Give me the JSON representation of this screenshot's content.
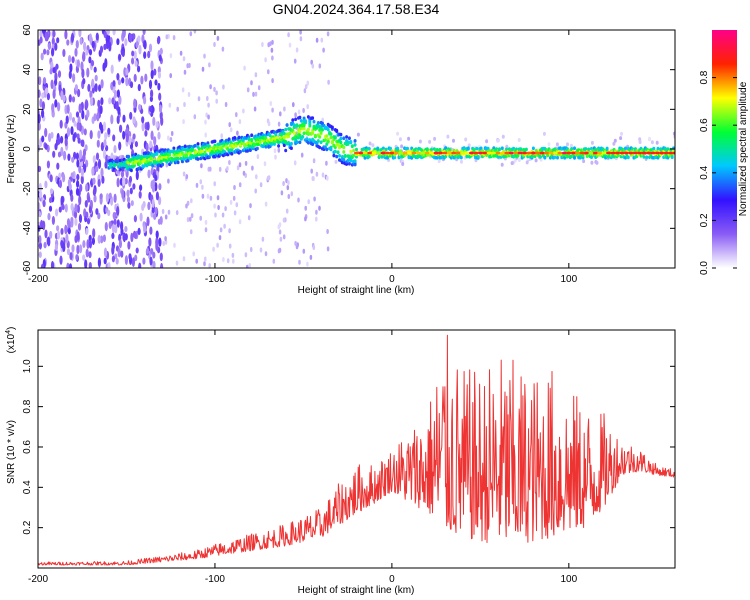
{
  "title": "GN04.2024.364.17.58.E34",
  "chart_data": [
    {
      "type": "heatmap",
      "title": "GN04.2024.364.17.58.E34",
      "xlabel": "Height of straight line (km)",
      "ylabel": "Frequency (Hz)",
      "xlim": [
        -200,
        160
      ],
      "ylim": [
        -60,
        60
      ],
      "xticks": [
        -200,
        -100,
        0,
        100
      ],
      "yticks": [
        -60,
        -40,
        -20,
        0,
        20,
        40,
        60
      ],
      "grid": false,
      "ridge": {
        "x": [
          -155,
          -140,
          -120,
          -100,
          -80,
          -60,
          -50,
          -42,
          -35,
          -28,
          -20,
          0,
          20,
          50,
          80,
          110,
          120,
          160
        ],
        "freq": [
          -8,
          -6,
          -3,
          0,
          3,
          6,
          10,
          8,
          5,
          0,
          -2,
          -2,
          -2,
          -2,
          -2,
          -2,
          -2,
          -2
        ]
      },
      "colorbar": {
        "label": "Normalized spectral amplitude",
        "range": [
          0.0,
          1.0
        ],
        "ticks": [
          0.0,
          0.2,
          0.4,
          0.6,
          0.8
        ],
        "colormap": [
          "#ffffff",
          "#8a5cf5",
          "#3311ff",
          "#00c8ff",
          "#00ff33",
          "#ffff00",
          "#ff2200",
          "#ff0088"
        ]
      }
    },
    {
      "type": "line",
      "xlabel": "Height of straight line (km)",
      "ylabel": "SNR (10 * v/v)",
      "yscale_label": "(x10",
      "yscale_exp": "4",
      "xlim": [
        -200,
        160
      ],
      "ylim": [
        0,
        11800
      ],
      "xticks": [
        -200,
        -100,
        0,
        100
      ],
      "yticks": [
        2000,
        4000,
        6000,
        8000,
        10000
      ],
      "ytick_labels": [
        "0.2",
        "0.4",
        "0.6",
        "0.8",
        "1.0"
      ],
      "grid": false,
      "color": "#ee3333",
      "series": [
        {
          "x": [
            -200,
            -170,
            -150,
            -130,
            -110,
            -100,
            -80,
            -60,
            -40,
            -30,
            -20,
            -10,
            0,
            10,
            20,
            30,
            40,
            50,
            60,
            70,
            80,
            90,
            100,
            110,
            120,
            130,
            140,
            150,
            160
          ],
          "envelope": [
            300,
            320,
            350,
            600,
            900,
            1200,
            1700,
            2200,
            3000,
            4200,
            5200,
            5200,
            6000,
            7000,
            8000,
            11800,
            10000,
            9800,
            10800,
            10300,
            9700,
            10100,
            9000,
            8200,
            7700,
            6500,
            6000,
            5100,
            4900
          ],
          "base": [
            150,
            150,
            150,
            300,
            450,
            600,
            850,
            1100,
            1500,
            2100,
            2700,
            3200,
            3800,
            3200,
            2800,
            1800,
            1500,
            1300,
            1200,
            1200,
            1300,
            1500,
            1800,
            2000,
            3000,
            4600,
            4800,
            4600,
            4500
          ]
        }
      ]
    }
  ]
}
